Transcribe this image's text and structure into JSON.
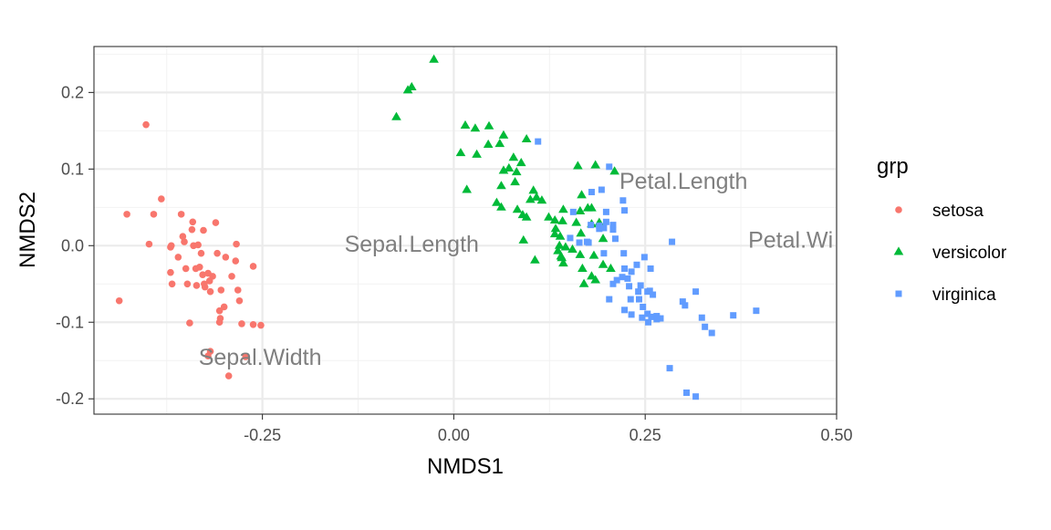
{
  "chart_data": {
    "type": "scatter",
    "title": "",
    "xlabel": "NMDS1",
    "ylabel": "NMDS2",
    "xlim": [
      -0.47,
      0.5
    ],
    "ylim": [
      -0.22,
      0.26
    ],
    "x_ticks": [
      -0.25,
      0.0,
      0.25,
      0.5
    ],
    "x_tick_labels": [
      "-0.25",
      "0.00",
      "0.25",
      "0.50"
    ],
    "y_ticks": [
      -0.2,
      -0.1,
      0.0,
      0.1,
      0.2
    ],
    "y_tick_labels": [
      "-0.2",
      "-0.1",
      "0.0",
      "0.1",
      "0.2"
    ],
    "grid": true,
    "theme": "bw",
    "legend": {
      "title": "grp",
      "placement": "right",
      "entries": [
        "setosa",
        "versicolor",
        "virginica"
      ]
    },
    "series": [
      {
        "name": "setosa",
        "shape": "circle",
        "color": "#F8766D",
        "points": [
          [
            -0.402,
            0.158
          ],
          [
            -0.427,
            0.041
          ],
          [
            -0.392,
            0.041
          ],
          [
            -0.398,
            0.002
          ],
          [
            -0.382,
            0.061
          ],
          [
            -0.37,
            -0.002
          ],
          [
            -0.369,
            0.0
          ],
          [
            -0.37,
            -0.035
          ],
          [
            -0.368,
            -0.05
          ],
          [
            -0.36,
            -0.015
          ],
          [
            -0.356,
            0.041
          ],
          [
            -0.354,
            0.012
          ],
          [
            -0.352,
            0.005
          ],
          [
            -0.35,
            -0.03
          ],
          [
            -0.348,
            -0.05
          ],
          [
            -0.345,
            -0.101
          ],
          [
            -0.342,
            0.021
          ],
          [
            -0.341,
            0.031
          ],
          [
            -0.34,
            0.0
          ],
          [
            -0.337,
            -0.03
          ],
          [
            -0.336,
            -0.052
          ],
          [
            -0.334,
            0.001
          ],
          [
            -0.332,
            -0.028
          ],
          [
            -0.33,
            -0.01
          ],
          [
            -0.328,
            -0.038
          ],
          [
            -0.327,
            0.02
          ],
          [
            -0.326,
            -0.05
          ],
          [
            -0.325,
            -0.054
          ],
          [
            -0.321,
            -0.036
          ],
          [
            -0.319,
            -0.046
          ],
          [
            -0.318,
            -0.06
          ],
          [
            -0.315,
            -0.04
          ],
          [
            -0.311,
            0.03
          ],
          [
            -0.309,
            -0.01
          ],
          [
            -0.306,
            -0.085
          ],
          [
            -0.306,
            -0.1
          ],
          [
            -0.305,
            -0.095
          ],
          [
            -0.304,
            -0.058
          ],
          [
            -0.3,
            -0.08
          ],
          [
            -0.298,
            -0.015
          ],
          [
            -0.294,
            -0.17
          ],
          [
            -0.29,
            -0.04
          ],
          [
            -0.285,
            -0.02
          ],
          [
            -0.282,
            -0.058
          ],
          [
            -0.28,
            -0.072
          ],
          [
            -0.277,
            -0.102
          ],
          [
            -0.272,
            -0.145
          ],
          [
            -0.262,
            -0.027
          ],
          [
            -0.262,
            -0.103
          ],
          [
            -0.252,
            -0.104
          ],
          [
            -0.437,
            -0.072
          ],
          [
            -0.318,
            -0.138
          ],
          [
            -0.321,
            -0.144
          ],
          [
            -0.284,
            0.002
          ]
        ]
      },
      {
        "name": "versicolor",
        "shape": "triangle",
        "color": "#00BA38",
        "points": [
          [
            -0.026,
            0.243
          ],
          [
            -0.06,
            0.203
          ],
          [
            -0.055,
            0.207
          ],
          [
            -0.075,
            0.168
          ],
          [
            0.015,
            0.157
          ],
          [
            0.028,
            0.153
          ],
          [
            0.046,
            0.156
          ],
          [
            0.065,
            0.144
          ],
          [
            0.009,
            0.121
          ],
          [
            0.03,
            0.119
          ],
          [
            0.045,
            0.132
          ],
          [
            0.06,
            0.133
          ],
          [
            0.095,
            0.139
          ],
          [
            0.065,
            0.098
          ],
          [
            0.072,
            0.101
          ],
          [
            0.078,
            0.115
          ],
          [
            0.082,
            0.096
          ],
          [
            0.088,
            0.108
          ],
          [
            0.062,
            0.078
          ],
          [
            0.08,
            0.083
          ],
          [
            0.104,
            0.072
          ],
          [
            0.108,
            0.063
          ],
          [
            0.115,
            0.059
          ],
          [
            0.017,
            0.073
          ],
          [
            0.056,
            0.056
          ],
          [
            0.062,
            0.05
          ],
          [
            0.083,
            0.047
          ],
          [
            0.09,
            0.04
          ],
          [
            0.095,
            0.037
          ],
          [
            0.1,
            0.06
          ],
          [
            0.124,
            0.037
          ],
          [
            0.132,
            0.033
          ],
          [
            0.143,
            0.047
          ],
          [
            0.165,
            0.045
          ],
          [
            0.18,
            0.049
          ],
          [
            0.133,
            0.022
          ],
          [
            0.139,
            0.012
          ],
          [
            0.16,
            0.03
          ],
          [
            0.166,
            0.016
          ],
          [
            0.167,
            0.066
          ],
          [
            0.175,
            0.049
          ],
          [
            0.18,
            0.028
          ],
          [
            0.19,
            0.03
          ],
          [
            0.195,
            0.009
          ],
          [
            0.183,
            -0.013
          ],
          [
            0.155,
            -0.005
          ],
          [
            0.165,
            -0.012
          ],
          [
            0.14,
            -0.014
          ],
          [
            0.141,
            -0.016
          ],
          [
            0.143,
            -0.023
          ],
          [
            0.146,
            -0.002
          ],
          [
            0.106,
            -0.019
          ],
          [
            0.168,
            -0.03
          ],
          [
            0.18,
            -0.04
          ],
          [
            0.185,
            -0.045
          ],
          [
            0.195,
            -0.025
          ],
          [
            0.205,
            -0.03
          ],
          [
            0.17,
            -0.05
          ],
          [
            0.138,
            0.0
          ],
          [
            0.162,
            0.104
          ],
          [
            0.185,
            0.105
          ],
          [
            0.21,
            0.097
          ],
          [
            0.136,
            -0.007
          ],
          [
            0.091,
            0.007
          ],
          [
            0.142,
            0.032
          ],
          [
            0.132,
            0.015
          ]
        ]
      },
      {
        "name": "virginica",
        "shape": "square",
        "color": "#619CFF",
        "points": [
          [
            0.11,
            0.136
          ],
          [
            0.203,
            0.103
          ],
          [
            0.193,
            0.073
          ],
          [
            0.18,
            0.07
          ],
          [
            0.221,
            0.059
          ],
          [
            0.156,
            0.044
          ],
          [
            0.199,
            0.044
          ],
          [
            0.223,
            0.046
          ],
          [
            0.199,
            0.031
          ],
          [
            0.179,
            0.027
          ],
          [
            0.19,
            0.026
          ],
          [
            0.196,
            0.023
          ],
          [
            0.208,
            0.027
          ],
          [
            0.152,
            0.01
          ],
          [
            0.164,
            0.004
          ],
          [
            0.174,
            0.005
          ],
          [
            0.19,
            0.022
          ],
          [
            0.208,
            0.021
          ],
          [
            0.285,
            0.005
          ],
          [
            0.222,
            -0.01
          ],
          [
            0.249,
            -0.015
          ],
          [
            0.239,
            -0.025
          ],
          [
            0.257,
            -0.03
          ],
          [
            0.223,
            -0.03
          ],
          [
            0.232,
            -0.034
          ],
          [
            0.213,
            -0.045
          ],
          [
            0.208,
            -0.05
          ],
          [
            0.203,
            -0.07
          ],
          [
            0.227,
            -0.043
          ],
          [
            0.244,
            -0.052
          ],
          [
            0.242,
            -0.07
          ],
          [
            0.253,
            -0.06
          ],
          [
            0.231,
            -0.07
          ],
          [
            0.247,
            -0.08
          ],
          [
            0.26,
            -0.064
          ],
          [
            0.256,
            -0.059
          ],
          [
            0.223,
            -0.084
          ],
          [
            0.232,
            -0.09
          ],
          [
            0.253,
            -0.089
          ],
          [
            0.258,
            -0.093
          ],
          [
            0.265,
            -0.092
          ],
          [
            0.27,
            -0.095
          ],
          [
            0.246,
            -0.094
          ],
          [
            0.254,
            -0.1
          ],
          [
            0.299,
            -0.073
          ],
          [
            0.316,
            -0.06
          ],
          [
            0.302,
            -0.078
          ],
          [
            0.324,
            -0.094
          ],
          [
            0.328,
            -0.106
          ],
          [
            0.337,
            -0.114
          ],
          [
            0.365,
            -0.091
          ],
          [
            0.395,
            -0.085
          ],
          [
            0.282,
            -0.16
          ],
          [
            0.304,
            -0.192
          ],
          [
            0.316,
            -0.197
          ],
          [
            0.265,
            -0.096
          ],
          [
            0.229,
            -0.053
          ],
          [
            0.241,
            -0.06
          ],
          [
            0.22,
            -0.041
          ],
          [
            0.176,
            0.004
          ],
          [
            0.196,
            -0.01
          ],
          [
            0.211,
            0.009
          ],
          [
            0.266,
            -0.095
          ]
        ]
      }
    ],
    "variable_labels": [
      {
        "text": "Sepal.Length",
        "x": -0.055,
        "y": 0.003
      },
      {
        "text": "Sepal.Width",
        "x": -0.253,
        "y": -0.145
      },
      {
        "text": "Petal.Length",
        "x": 0.3,
        "y": 0.085
      },
      {
        "text": "Petal.Wi",
        "x": 0.44,
        "y": 0.008
      }
    ]
  }
}
